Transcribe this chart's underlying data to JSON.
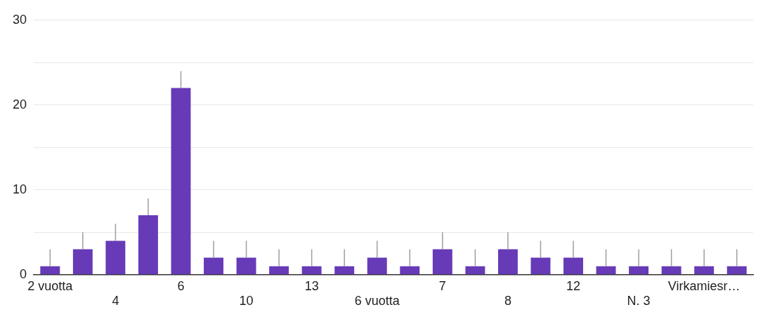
{
  "chart_data": {
    "type": "bar",
    "categories": [
      "2 vuotta",
      null,
      "4",
      null,
      "6",
      null,
      "10",
      null,
      "13",
      null,
      "6 vuotta",
      null,
      "7",
      null,
      "8",
      null,
      "12",
      null,
      "N. 3",
      null,
      "Virkamiesr…",
      null
    ],
    "values": [
      1,
      3,
      4,
      7,
      22,
      2,
      2,
      1,
      1,
      1,
      2,
      1,
      3,
      1,
      3,
      2,
      2,
      1,
      1,
      1,
      1,
      1
    ],
    "errors": [
      [
        1,
        3
      ],
      [
        3,
        5
      ],
      [
        4,
        6
      ],
      [
        7,
        9
      ],
      [
        22,
        24
      ],
      [
        2,
        4
      ],
      [
        2,
        4
      ],
      [
        1,
        3
      ],
      [
        1,
        3
      ],
      [
        1,
        3
      ],
      [
        2,
        4
      ],
      [
        1,
        3
      ],
      [
        3,
        5
      ],
      [
        1,
        3
      ],
      [
        3,
        5
      ],
      [
        2,
        4
      ],
      [
        2,
        4
      ],
      [
        1,
        3
      ],
      [
        1,
        3
      ],
      [
        1,
        3
      ],
      [
        1,
        3
      ],
      [
        1,
        3
      ]
    ],
    "color": "#673ab7",
    "ylim": [
      0,
      30
    ],
    "yticks": [
      0,
      {
        "value": 5,
        "label": null
      },
      10,
      {
        "value": 15,
        "label": null
      },
      20,
      {
        "value": 25,
        "label": null
      },
      30
    ],
    "grid": "y",
    "legend": false
  }
}
